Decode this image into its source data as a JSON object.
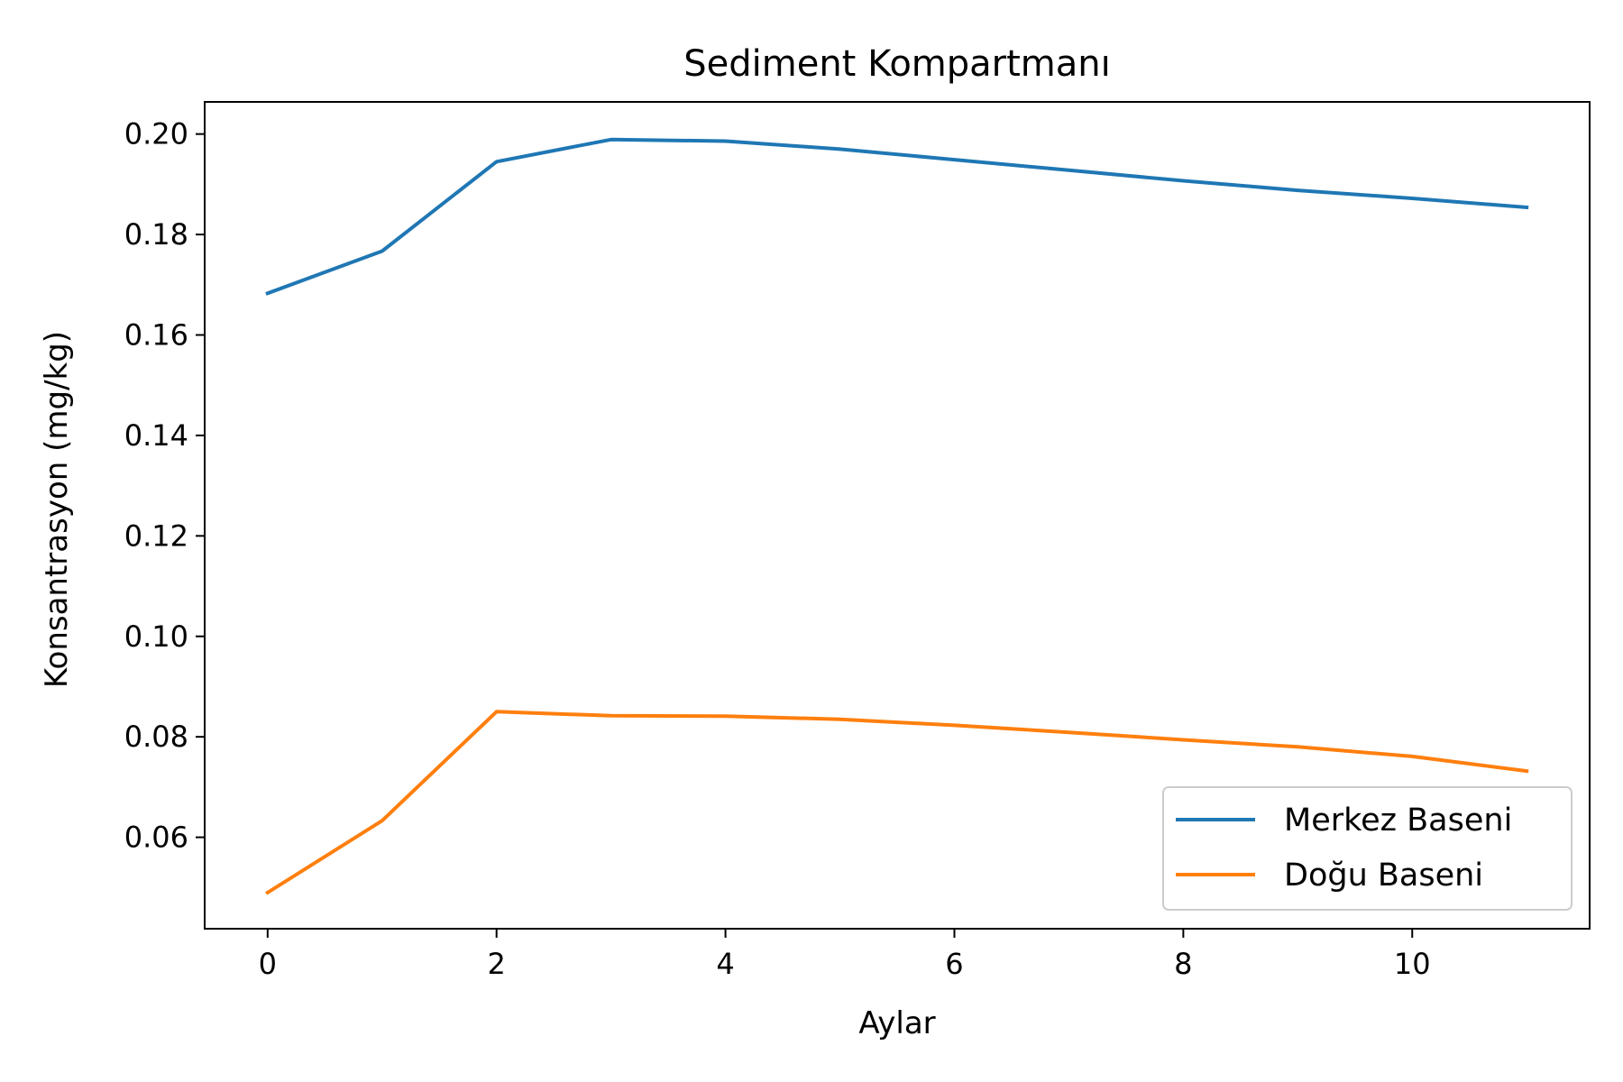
{
  "chart_data": {
    "type": "line",
    "title": "Sediment Kompartmanı",
    "xlabel": "Aylar",
    "ylabel": "Konsantrasyon (mg/kg)",
    "x": [
      0,
      1,
      2,
      3,
      4,
      5,
      6,
      7,
      8,
      9,
      10,
      11
    ],
    "xlim": [
      -0.55,
      11.55
    ],
    "ylim": [
      0.0418,
      0.2064
    ],
    "xticks": [
      0,
      2,
      4,
      6,
      8,
      10
    ],
    "yticks": [
      0.06,
      0.08,
      0.1,
      0.12,
      0.14,
      0.16,
      0.18,
      0.2
    ],
    "xtick_labels": [
      "0",
      "2",
      "4",
      "6",
      "8",
      "10"
    ],
    "ytick_labels": [
      "0.06",
      "0.08",
      "0.10",
      "0.12",
      "0.14",
      "0.16",
      "0.18",
      "0.20"
    ],
    "grid": false,
    "legend_position": "lower-right",
    "series": [
      {
        "name": "Merkez Baseni",
        "color": "#1f77b4",
        "values": [
          0.1683,
          0.1767,
          0.1945,
          0.1989,
          0.1986,
          0.197,
          0.1949,
          0.1928,
          0.1907,
          0.1888,
          0.1872,
          0.1854
        ]
      },
      {
        "name": "Doğu Baseni",
        "color": "#ff7f0e",
        "values": [
          0.049,
          0.0633,
          0.085,
          0.0842,
          0.0841,
          0.0835,
          0.0823,
          0.0809,
          0.0794,
          0.078,
          0.0761,
          0.0732
        ]
      }
    ]
  }
}
